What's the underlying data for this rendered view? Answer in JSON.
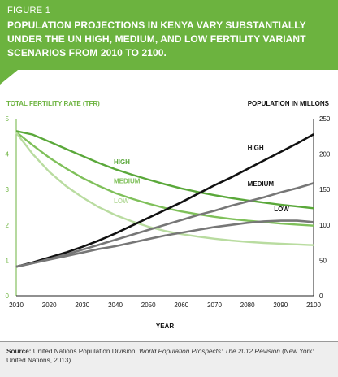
{
  "header": {
    "figure_label": "FIGURE 1",
    "title": "POPULATION PROJECTIONS IN KENYA VARY SUBSTANTIALLY UNDER THE UN HIGH, MEDIUM, AND LOW FERTILITY VARIANT SCENARIOS FROM 2010 TO 2100."
  },
  "colors": {
    "header_bg": "#6cb33f",
    "tfr_high": "#5aa83a",
    "tfr_medium": "#7fc05a",
    "tfr_low": "#b9dca0",
    "pop_high": "#111111",
    "pop_medium": "#777777",
    "pop_low": "#777777",
    "left_axis": "#6cb33f"
  },
  "chart_data": {
    "type": "line",
    "xlabel": "YEAR",
    "ylabel_left": "TOTAL FERTILITY RATE (TFR)",
    "ylabel_right": "POPULATION IN MILLONS",
    "xlim": [
      2010,
      2100
    ],
    "ylim_left": [
      0,
      5
    ],
    "ylim_right": [
      0,
      250
    ],
    "x_ticks": [
      2010,
      2020,
      2030,
      2040,
      2050,
      2060,
      2070,
      2080,
      2090,
      2100
    ],
    "y_left_ticks": [
      0,
      1,
      2,
      3,
      4,
      5
    ],
    "y_right_ticks": [
      0,
      50,
      100,
      150,
      200,
      250
    ],
    "x": [
      2010,
      2015,
      2020,
      2025,
      2030,
      2035,
      2040,
      2045,
      2050,
      2055,
      2060,
      2065,
      2070,
      2075,
      2080,
      2085,
      2090,
      2095,
      2100
    ],
    "series_tfr": [
      {
        "name": "HIGH",
        "axis": "left",
        "values": [
          4.65,
          4.55,
          4.35,
          4.15,
          3.95,
          3.75,
          3.57,
          3.42,
          3.28,
          3.15,
          3.03,
          2.93,
          2.84,
          2.76,
          2.69,
          2.63,
          2.57,
          2.52,
          2.47
        ]
      },
      {
        "name": "MEDIUM",
        "axis": "left",
        "values": [
          4.62,
          4.25,
          3.9,
          3.6,
          3.33,
          3.1,
          2.9,
          2.74,
          2.6,
          2.48,
          2.38,
          2.3,
          2.23,
          2.17,
          2.12,
          2.08,
          2.04,
          2.01,
          1.98
        ]
      },
      {
        "name": "LOW",
        "axis": "left",
        "values": [
          4.6,
          4.0,
          3.5,
          3.1,
          2.78,
          2.5,
          2.28,
          2.1,
          1.95,
          1.83,
          1.74,
          1.67,
          1.61,
          1.56,
          1.52,
          1.49,
          1.47,
          1.45,
          1.43
        ]
      }
    ],
    "series_population": [
      {
        "name": "HIGH",
        "axis": "right",
        "values": [
          41,
          47,
          54,
          61,
          69,
          78,
          88,
          99,
          110,
          121,
          132,
          144,
          156,
          167,
          179,
          191,
          203,
          215,
          228
        ]
      },
      {
        "name": "MEDIUM",
        "axis": "right",
        "values": [
          41,
          46,
          52,
          58,
          65,
          72,
          79,
          86,
          93,
          100,
          107,
          114,
          120,
          127,
          133,
          139,
          146,
          152,
          159
        ]
      },
      {
        "name": "LOW",
        "axis": "right",
        "values": [
          41,
          46,
          51,
          56,
          61,
          66,
          70,
          75,
          80,
          85,
          89,
          93,
          97,
          100,
          103,
          105,
          106,
          106,
          104
        ]
      }
    ],
    "legend": "inline"
  },
  "source": {
    "label": "Source:",
    "text_before": "United Nations Population Division,",
    "italic_title": "World Population Prospects: The 2012 Revision",
    "text_after": "(New York: United Nations, 2013)."
  }
}
